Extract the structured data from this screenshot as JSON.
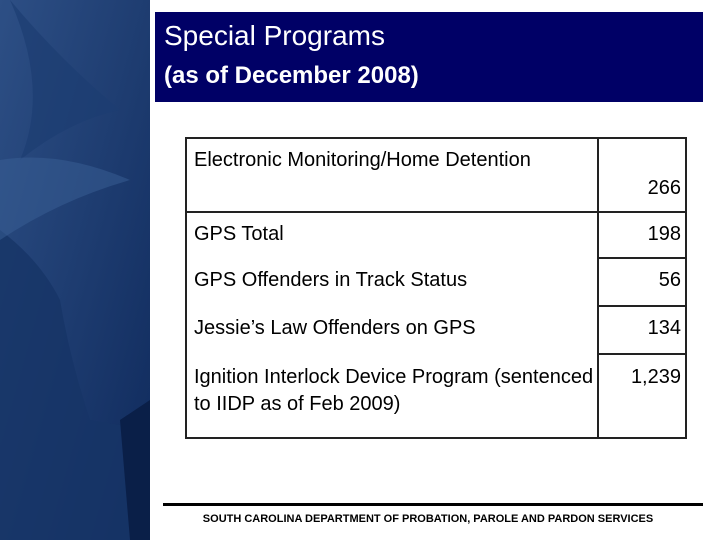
{
  "header": {
    "title": "Special Programs",
    "subtitle": "(as of December 2008)"
  },
  "table": {
    "rows": [
      [
        "Electronic Monitoring/Home Detention",
        "266"
      ],
      [
        "GPS Total",
        "198"
      ],
      [
        "GPS Offenders in Track Status",
        "56"
      ],
      [
        "Jessie’s Law Offenders on GPS",
        "134"
      ],
      [
        "Ignition Interlock Device Program (sentenced to IIDP as of Feb 2009)",
        "1,239"
      ]
    ]
  },
  "footer": {
    "text": "SOUTH CAROLINA DEPARTMENT OF PROBATION, PAROLE AND PARDON SERVICES"
  }
}
